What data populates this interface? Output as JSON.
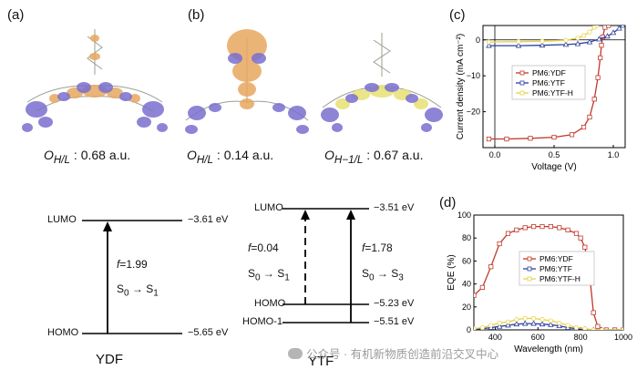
{
  "panels": {
    "a": {
      "label": "(a)",
      "overlap": "O",
      "overlap_sub": "H/L",
      "overlap_value": ": 0.68 a.u."
    },
    "b": {
      "label": "(b)",
      "overlap": "O",
      "overlap_sub": "H/L",
      "overlap_value": ": 0.14  a.u."
    },
    "b2": {
      "overlap": "O",
      "overlap_sub": "H−1/L",
      "overlap_value": ": 0.67 a.u."
    },
    "c": {
      "label": "(c)"
    },
    "d": {
      "label": "(d)"
    }
  },
  "ydf_diagram": {
    "lumo_label": "LUMO",
    "lumo_energy": "−3.61 eV",
    "homo_label": "HOMO",
    "homo_energy": "−5.65 eV",
    "f_symbol": "f",
    "f_value": "=1.99",
    "transition_from": "S",
    "transition_from_sub": "0",
    "arrow": "→",
    "transition_to": "S",
    "transition_to_sub": "1",
    "name": "YDF"
  },
  "ytf_diagram": {
    "lumo_label": "LUMO",
    "lumo_energy": "−3.51 eV",
    "homo_label": "HOMO",
    "homo_energy": "−5.23 eV",
    "homo1_label": "HOMO-1",
    "homo1_energy": "−5.51 eV",
    "left_f_symbol": "f",
    "left_f_value": "=0.04",
    "left_from": "S",
    "left_from_sub": "0",
    "left_to": "S",
    "left_to_sub": "1",
    "right_f_symbol": "f",
    "right_f_value": "=1.78",
    "right_from": "S",
    "right_from_sub": "0",
    "right_to": "S",
    "right_to_sub": "3",
    "arrow": "→",
    "name": "YTF"
  },
  "colors": {
    "ydf": "#c0392b",
    "ytf": "#2b3fa0",
    "ytfh": "#e8d24a",
    "orbital_orange": "#e8a860",
    "orbital_purple": "#7a6fd0",
    "orbital_yellow": "#e8e37a"
  },
  "chart_data": [
    {
      "type": "line",
      "title": "",
      "xlabel": "Voltage (V)",
      "ylabel": "Current density (mA cm⁻²)",
      "xlim": [
        -0.1,
        1.1
      ],
      "ylim": [
        -30,
        4
      ],
      "xticks": [
        "0.0",
        "0.5",
        "1.0"
      ],
      "yticks": [
        "0",
        "−10",
        "−20"
      ],
      "legend": "center-right",
      "series": [
        {
          "name": "PM6:YDF",
          "color": "#c0392b",
          "x": [
            -0.05,
            0.1,
            0.3,
            0.5,
            0.65,
            0.75,
            0.8,
            0.84,
            0.87,
            0.89,
            0.9,
            0.91,
            0.93,
            0.96
          ],
          "y": [
            -27.6,
            -27.6,
            -27.4,
            -27.1,
            -26.4,
            -24.3,
            -21.5,
            -16.5,
            -10.5,
            -5,
            -1.5,
            0.8,
            3.5,
            4
          ]
        },
        {
          "name": "PM6:YTF",
          "color": "#2b3fa0",
          "x": [
            -0.05,
            0.2,
            0.4,
            0.6,
            0.7,
            0.8,
            0.88,
            0.95,
            1.0,
            1.05,
            1.08
          ],
          "y": [
            -1.6,
            -1.6,
            -1.5,
            -1.3,
            -1.1,
            -0.6,
            0.2,
            1.0,
            2.0,
            3.2,
            4
          ]
        },
        {
          "name": "PM6:YTF-H",
          "color": "#e8d24a",
          "x": [
            -0.05,
            0.2,
            0.4,
            0.6,
            0.7,
            0.75,
            0.8,
            0.84,
            0.86
          ],
          "y": [
            -0.6,
            -0.5,
            -0.4,
            -0.1,
            0.5,
            1.2,
            2.2,
            3.5,
            4
          ]
        }
      ]
    },
    {
      "type": "line",
      "title": "",
      "xlabel": "Wavelength (nm)",
      "ylabel": "EQE (%)",
      "xlim": [
        300,
        1000
      ],
      "ylim": [
        0,
        100
      ],
      "xticks": [
        "400",
        "600",
        "800",
        "1000"
      ],
      "yticks": [
        "0",
        "20",
        "40",
        "60",
        "80",
        "100"
      ],
      "legend": "center",
      "series": [
        {
          "name": "PM6:YDF",
          "color": "#c0392b",
          "x": [
            300,
            340,
            380,
            420,
            460,
            500,
            540,
            580,
            620,
            660,
            700,
            740,
            780,
            800,
            820,
            840,
            860,
            880,
            920,
            960,
            1000
          ],
          "y": [
            30,
            37,
            55,
            75,
            84,
            87,
            89,
            90,
            90,
            90,
            89,
            87,
            84,
            80,
            72,
            52,
            15,
            3,
            0,
            0,
            0
          ]
        },
        {
          "name": "PM6:YTF",
          "color": "#2b3fa0",
          "x": [
            300,
            340,
            380,
            420,
            460,
            500,
            540,
            580,
            620,
            660,
            700,
            740,
            780,
            820,
            860,
            900,
            1000
          ],
          "y": [
            0.5,
            1,
            2,
            3,
            4,
            5,
            5.5,
            5.5,
            5,
            4.5,
            3.5,
            2,
            1,
            0.5,
            0,
            0,
            0
          ]
        },
        {
          "name": "PM6:YTF-H",
          "color": "#e8d24a",
          "x": [
            300,
            340,
            380,
            420,
            460,
            500,
            540,
            580,
            620,
            660,
            700,
            740,
            780,
            820,
            860,
            900,
            1000
          ],
          "y": [
            1,
            2,
            4,
            6,
            7,
            9,
            10,
            10,
            9,
            8,
            6,
            4,
            2,
            1,
            0,
            0,
            0
          ]
        }
      ]
    }
  ],
  "watermark": "公众号 · 有机新物质创造前沿交叉中心"
}
